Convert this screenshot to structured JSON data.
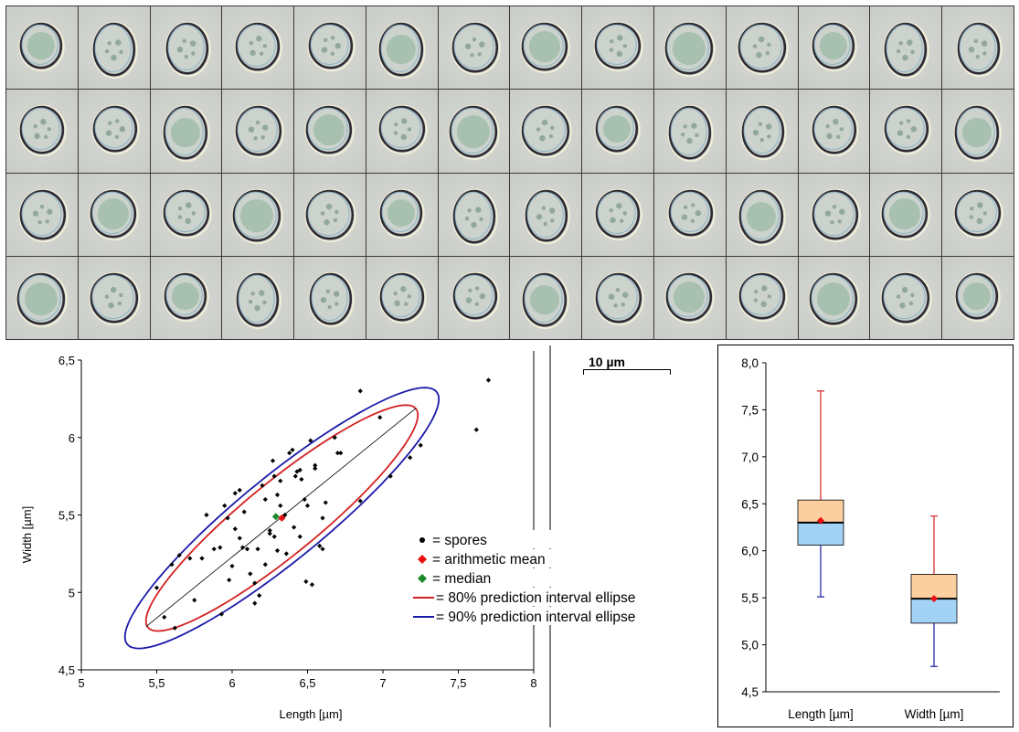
{
  "scale_bar": {
    "label": "10 µm"
  },
  "photo": {
    "rows": 4,
    "columns": 14
  },
  "chart_data": [
    {
      "type": "scatter",
      "xlabel": "Length [µm]",
      "ylabel": "Width [µm]",
      "xlim": [
        5,
        8
      ],
      "ylim": [
        4.5,
        6.5
      ],
      "x_ticks": [
        "5",
        "5,5",
        "6",
        "6,5",
        "7",
        "7,5",
        "8"
      ],
      "y_ticks": [
        "4,5",
        "5",
        "5,5",
        "6",
        "6,5"
      ],
      "grid": false,
      "legend_position": "right",
      "legend": [
        "= spores",
        "= arithmetic mean",
        "= median",
        "= 80% prediction interval ellipse",
        "= 90% prediction interval ellipse"
      ],
      "colors": {
        "spores": "#000000",
        "mean": "#e81010",
        "median": "#1a8a2a",
        "ellipse80": "#d42020",
        "ellipse90": "#1a1aa8",
        "regression": "#000000"
      },
      "spores": [
        [
          5.5,
          5.03
        ],
        [
          5.55,
          4.84
        ],
        [
          5.62,
          4.77
        ],
        [
          5.6,
          5.18
        ],
        [
          5.65,
          5.24
        ],
        [
          5.72,
          5.22
        ],
        [
          5.75,
          4.95
        ],
        [
          5.8,
          5.22
        ],
        [
          5.88,
          5.28
        ],
        [
          5.92,
          5.29
        ],
        [
          5.93,
          4.86
        ],
        [
          5.95,
          5.56
        ],
        [
          5.97,
          5.48
        ],
        [
          5.98,
          5.08
        ],
        [
          6.0,
          5.17
        ],
        [
          6.02,
          5.64
        ],
        [
          6.05,
          5.66
        ],
        [
          6.05,
          5.35
        ],
        [
          6.08,
          5.52
        ],
        [
          6.1,
          5.28
        ],
        [
          6.12,
          5.12
        ],
        [
          6.15,
          5.06
        ],
        [
          6.15,
          4.93
        ],
        [
          6.17,
          5.28
        ],
        [
          6.18,
          4.98
        ],
        [
          6.2,
          5.69
        ],
        [
          6.22,
          5.6
        ],
        [
          6.25,
          5.38
        ],
        [
          6.25,
          5.4
        ],
        [
          6.28,
          5.36
        ],
        [
          6.28,
          5.75
        ],
        [
          6.27,
          5.85
        ],
        [
          6.3,
          5.63
        ],
        [
          6.32,
          5.72
        ],
        [
          6.32,
          5.56
        ],
        [
          6.35,
          5.5
        ],
        [
          6.36,
          5.25
        ],
        [
          6.38,
          5.9
        ],
        [
          6.4,
          5.92
        ],
        [
          6.41,
          5.42
        ],
        [
          6.42,
          5.75
        ],
        [
          6.43,
          5.78
        ],
        [
          6.45,
          5.79
        ],
        [
          6.46,
          5.73
        ],
        [
          6.48,
          5.6
        ],
        [
          6.5,
          5.56
        ],
        [
          6.52,
          5.98
        ],
        [
          6.55,
          5.8
        ],
        [
          6.53,
          5.05
        ],
        [
          6.55,
          5.82
        ],
        [
          6.58,
          5.3
        ],
        [
          6.6,
          5.48
        ],
        [
          6.6,
          5.28
        ],
        [
          6.62,
          5.58
        ],
        [
          6.68,
          6.0
        ],
        [
          6.7,
          5.9
        ],
        [
          6.72,
          5.9
        ],
        [
          6.85,
          6.3
        ],
        [
          6.85,
          5.59
        ],
        [
          6.98,
          6.13
        ],
        [
          7.05,
          5.75
        ],
        [
          7.18,
          5.87
        ],
        [
          7.25,
          5.95
        ],
        [
          7.62,
          6.05
        ],
        [
          7.7,
          6.37
        ],
        [
          6.49,
          5.07
        ],
        [
          6.22,
          5.18
        ],
        [
          6.07,
          5.29
        ],
        [
          6.3,
          5.27
        ],
        [
          6.45,
          5.36
        ],
        [
          5.83,
          5.5
        ],
        [
          6.02,
          5.41
        ]
      ],
      "mean": [
        6.33,
        5.48
      ],
      "median": [
        6.29,
        5.49
      ],
      "regression_line": [
        [
          5.43,
          4.78
        ],
        [
          7.22,
          6.19
        ]
      ],
      "ellipses": [
        {
          "name": "80% prediction interval ellipse",
          "center": [
            6.33,
            5.48
          ],
          "axis_angle_deg": 38.4,
          "semi_major": 1.135,
          "semi_minor": 0.238
        },
        {
          "name": "90% prediction interval ellipse",
          "center": [
            6.33,
            5.48
          ],
          "axis_angle_deg": 38.4,
          "semi_major": 1.31,
          "semi_minor": 0.275
        }
      ]
    },
    {
      "type": "box",
      "categories": [
        "Length [µm]",
        "Width [µm]"
      ],
      "ylim": [
        4.5,
        8.0
      ],
      "y_ticks": [
        "4,5",
        "5,0",
        "5,5",
        "6,0",
        "6,5",
        "7,0",
        "7,5",
        "8,0"
      ],
      "grid": false,
      "series": [
        {
          "min": 5.51,
          "q1": 6.06,
          "median": 6.3,
          "q3": 6.54,
          "max": 7.7,
          "mean": 6.32
        },
        {
          "min": 4.77,
          "q1": 5.23,
          "median": 5.49,
          "q3": 5.75,
          "max": 6.37,
          "mean": 5.49
        }
      ],
      "colors": {
        "upper_box": "#fbcf9f",
        "lower_box": "#a3d2f7",
        "upper_whisker": "#d42020",
        "lower_whisker": "#1a1aa8",
        "mean": "#e81010"
      }
    }
  ]
}
